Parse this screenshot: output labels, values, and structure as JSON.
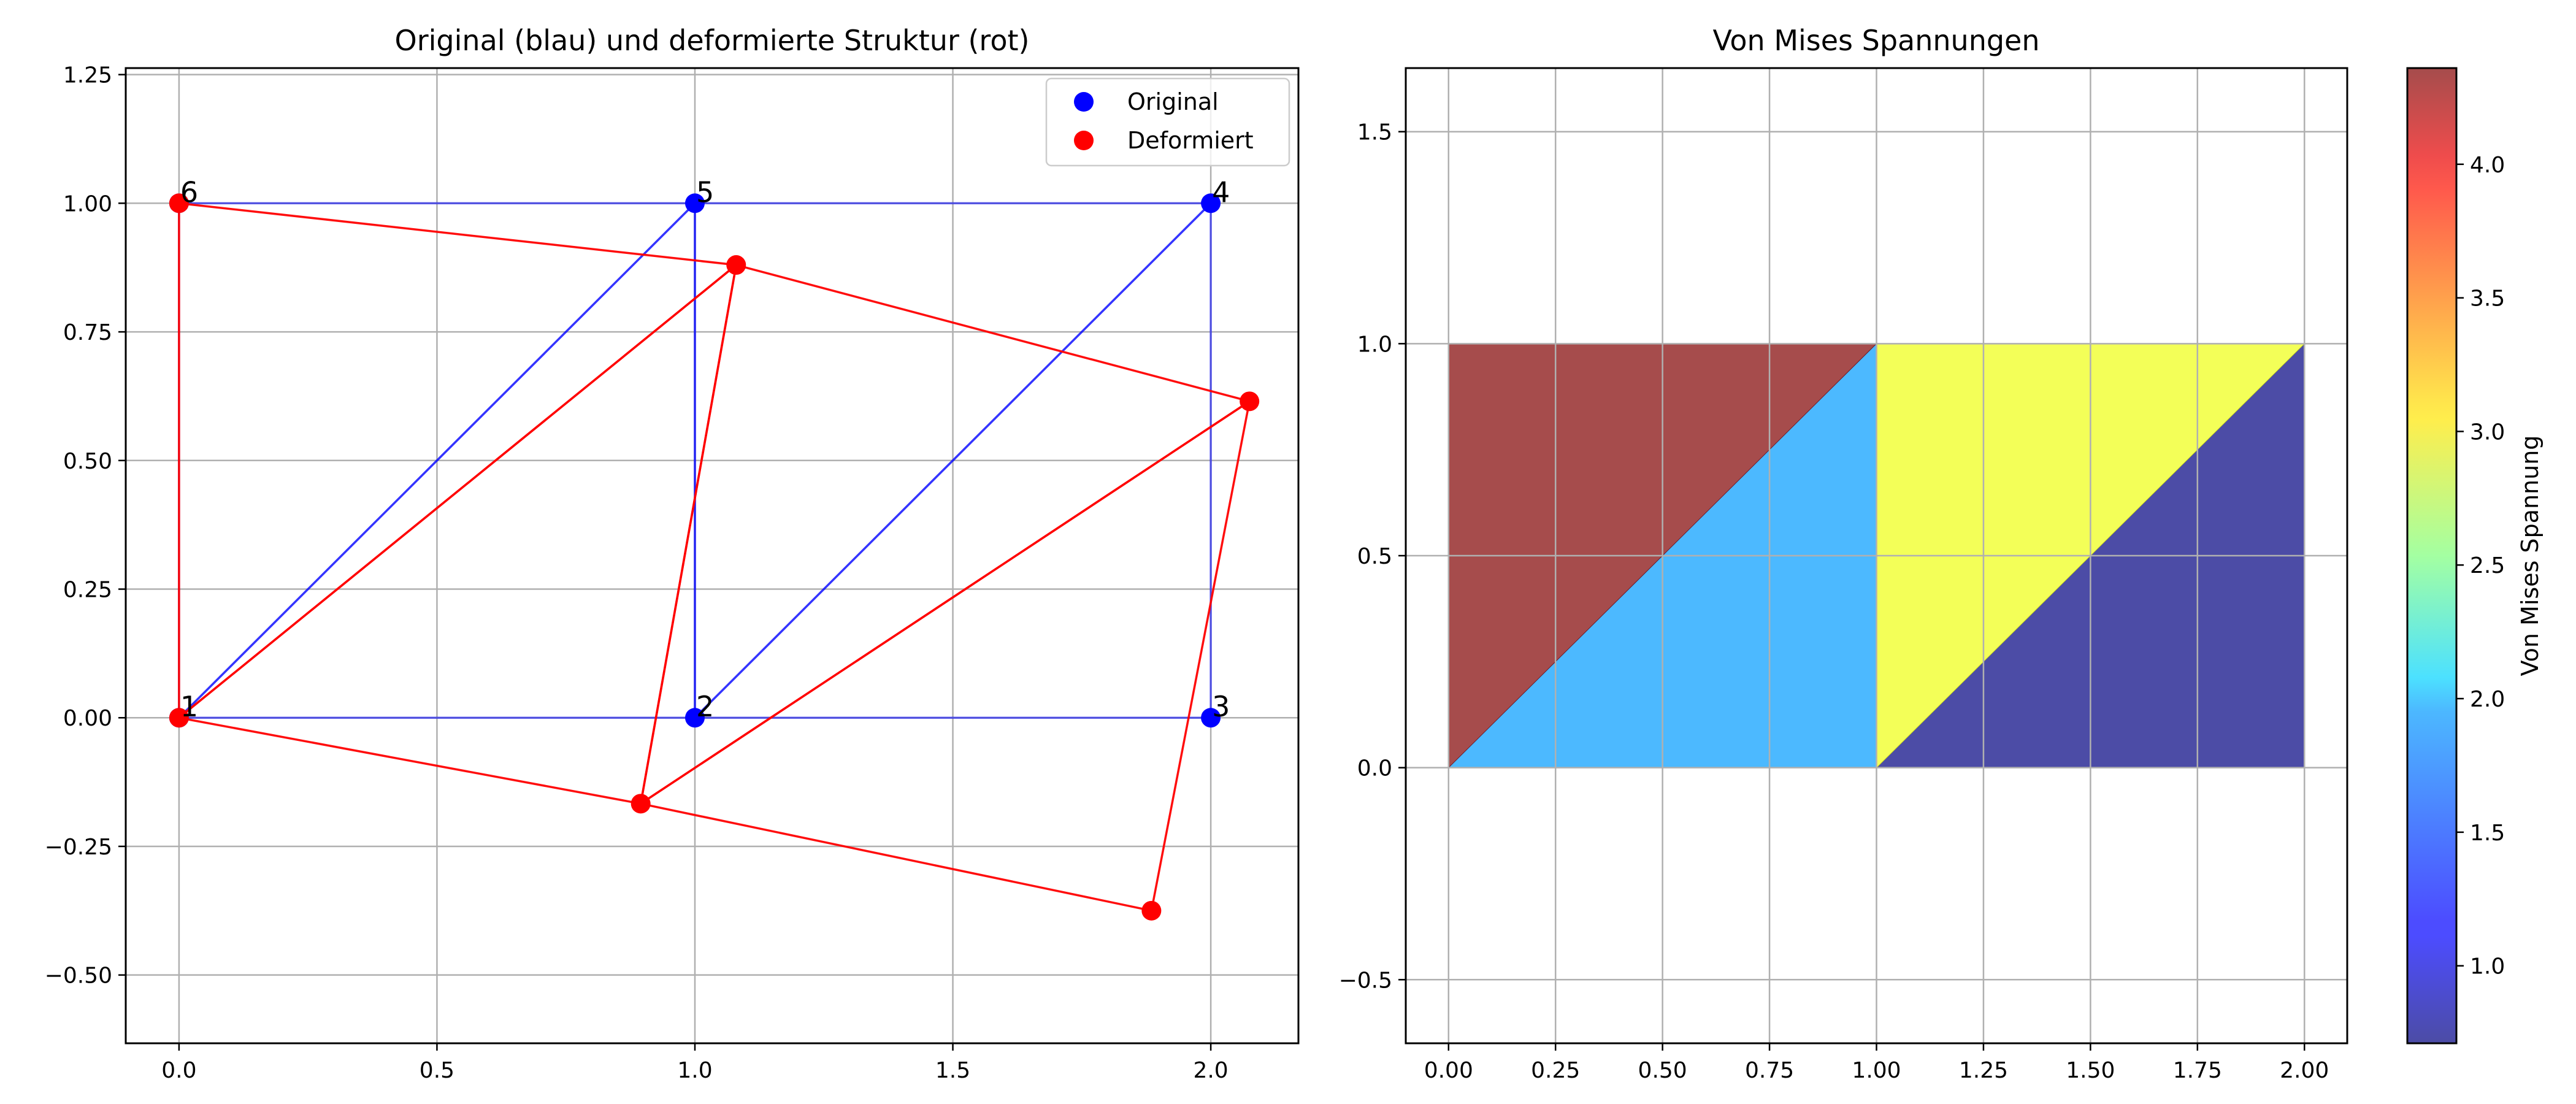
{
  "chart_data": [
    {
      "type": "scatter",
      "title": "Original (blau) und deformierte Struktur (rot)",
      "xlabel": "",
      "ylabel": "",
      "xlim": [
        -0.1033,
        2.1699
      ],
      "ylim": [
        -0.6327,
        1.2627
      ],
      "xticks": [
        0.0,
        0.5,
        1.0,
        1.5,
        2.0
      ],
      "xtick_labels": [
        "0.0",
        "0.5",
        "1.0",
        "1.5",
        "2.0"
      ],
      "yticks": [
        -0.5,
        -0.25,
        0.0,
        0.25,
        0.5,
        0.75,
        1.0,
        1.25
      ],
      "ytick_labels": [
        "−0.50",
        "−0.25",
        "0.00",
        "0.25",
        "0.50",
        "0.75",
        "1.00",
        "1.25"
      ],
      "grid": true,
      "legend_position": "top-right",
      "legend": [
        {
          "label": "Original",
          "color": "#0000ff"
        },
        {
          "label": "Deformiert",
          "color": "#ff0000"
        }
      ],
      "series": [
        {
          "name": "Original",
          "color": "#0000ff",
          "nodes": [
            {
              "id": "1",
              "x": 0.0,
              "y": 0.0
            },
            {
              "id": "2",
              "x": 1.0,
              "y": 0.0
            },
            {
              "id": "3",
              "x": 2.0,
              "y": 0.0
            },
            {
              "id": "4",
              "x": 2.0,
              "y": 1.0
            },
            {
              "id": "5",
              "x": 1.0,
              "y": 1.0
            },
            {
              "id": "6",
              "x": 0.0,
              "y": 1.0
            }
          ]
        },
        {
          "name": "Deformiert",
          "color": "#ff0000",
          "nodes": [
            {
              "id": "1",
              "x": 0.0,
              "y": 0.0
            },
            {
              "id": "2",
              "x": 0.895,
              "y": -0.167
            },
            {
              "id": "3",
              "x": 1.885,
              "y": -0.375
            },
            {
              "id": "4",
              "x": 2.075,
              "y": 0.615
            },
            {
              "id": "5",
              "x": 1.08,
              "y": 0.88
            },
            {
              "id": "6",
              "x": 0.0,
              "y": 1.0
            }
          ]
        }
      ],
      "elements": [
        [
          "1",
          "2",
          "5"
        ],
        [
          "1",
          "5",
          "6"
        ],
        [
          "2",
          "3",
          "4"
        ],
        [
          "2",
          "4",
          "5"
        ]
      ],
      "node_labels": [
        {
          "text": "1",
          "x": 0.0,
          "y": 0.0
        },
        {
          "text": "2",
          "x": 1.0,
          "y": 0.0
        },
        {
          "text": "3",
          "x": 2.0,
          "y": 0.0
        },
        {
          "text": "4",
          "x": 2.0,
          "y": 1.0
        },
        {
          "text": "5",
          "x": 1.0,
          "y": 1.0
        },
        {
          "text": "6",
          "x": 0.0,
          "y": 1.0
        }
      ]
    },
    {
      "type": "heatmap",
      "title": "Von Mises Spannungen",
      "xlabel": "",
      "ylabel": "",
      "xlim": [
        -0.1,
        2.1
      ],
      "ylim": [
        -0.65,
        1.65
      ],
      "xticks": [
        0.0,
        0.25,
        0.5,
        0.75,
        1.0,
        1.25,
        1.5,
        1.75,
        2.0
      ],
      "xtick_labels": [
        "0.00",
        "0.25",
        "0.50",
        "0.75",
        "1.00",
        "1.25",
        "1.50",
        "1.75",
        "2.00"
      ],
      "yticks": [
        -0.5,
        0.0,
        0.5,
        1.0,
        1.5
      ],
      "ytick_labels": [
        "−0.5",
        "0.0",
        "0.5",
        "1.0",
        "1.5"
      ],
      "grid": true,
      "colormap": "jet",
      "alpha": 0.7,
      "vmin": 0.71,
      "vmax": 4.36,
      "triangles": [
        {
          "element": 1,
          "vertices": [
            [
              0,
              0
            ],
            [
              1,
              0
            ],
            [
              1,
              1
            ]
          ],
          "value": 1.72
        },
        {
          "element": 2,
          "vertices": [
            [
              0,
              0
            ],
            [
              1,
              1
            ],
            [
              0,
              1
            ]
          ],
          "value": 4.36
        },
        {
          "element": 3,
          "vertices": [
            [
              1,
              0
            ],
            [
              2,
              0
            ],
            [
              2,
              1
            ]
          ],
          "value": 0.71
        },
        {
          "element": 4,
          "vertices": [
            [
              1,
              0
            ],
            [
              2,
              1
            ],
            [
              1,
              1
            ]
          ],
          "value": 2.93
        }
      ],
      "colorbar": {
        "label": "Von Mises Spannung",
        "ticks": [
          1.0,
          1.5,
          2.0,
          2.5,
          3.0,
          3.5,
          4.0
        ],
        "tick_labels": [
          "1.0",
          "1.5",
          "2.0",
          "2.5",
          "3.0",
          "3.5",
          "4.0"
        ]
      }
    }
  ]
}
